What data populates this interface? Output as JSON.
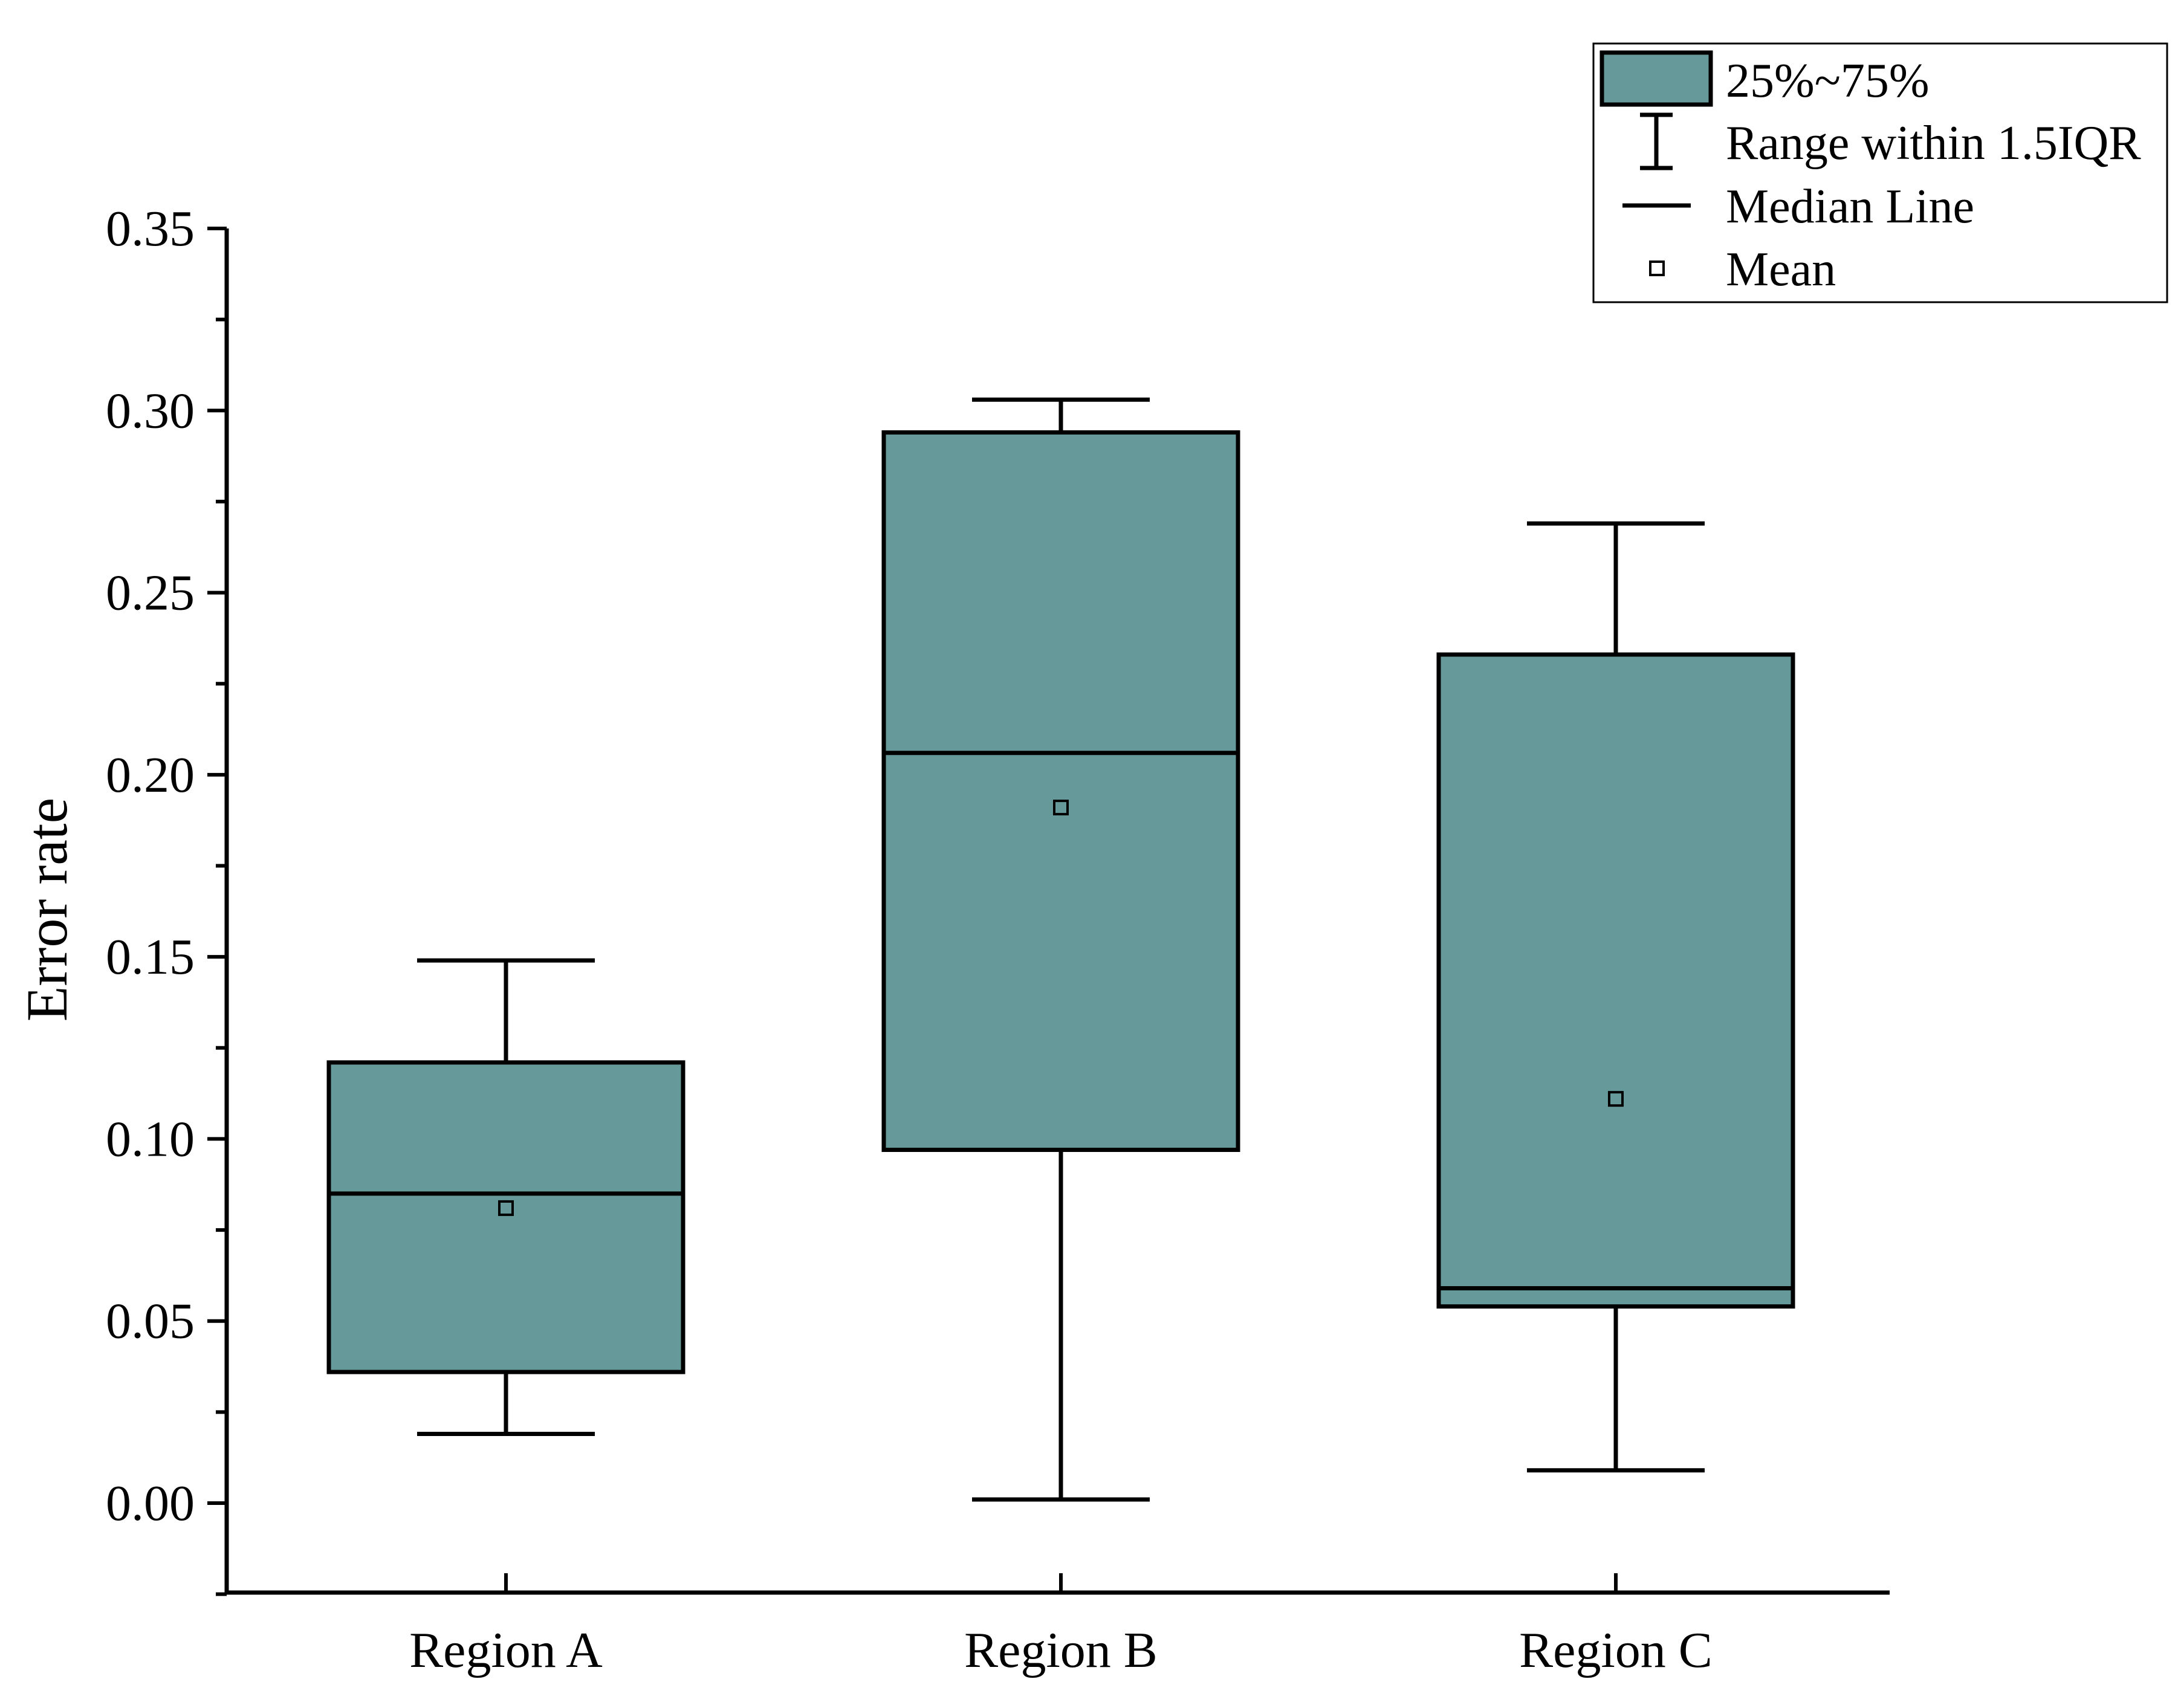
{
  "chart_data": {
    "type": "box",
    "title": "",
    "xlabel": "",
    "ylabel": "Error rate",
    "ylim": [
      -0.025,
      0.35
    ],
    "yticks": [
      "0.00",
      "0.05",
      "0.10",
      "0.15",
      "0.20",
      "0.25",
      "0.30",
      "0.35"
    ],
    "ytick_values": [
      0.0,
      0.05,
      0.1,
      0.15,
      0.2,
      0.25,
      0.3,
      0.35
    ],
    "categories": [
      "Region A",
      "Region B",
      "Region C"
    ],
    "boxes": [
      {
        "category": "Region A",
        "whisker_low": 0.019,
        "q1": 0.036,
        "median": 0.085,
        "q3": 0.121,
        "whisker_high": 0.149,
        "mean": 0.081
      },
      {
        "category": "Region B",
        "whisker_low": 0.001,
        "q1": 0.097,
        "median": 0.206,
        "q3": 0.294,
        "whisker_high": 0.303,
        "mean": 0.191
      },
      {
        "category": "Region C",
        "whisker_low": 0.009,
        "q1": 0.054,
        "median": 0.059,
        "q3": 0.233,
        "whisker_high": 0.269,
        "mean": 0.111
      }
    ],
    "colors": {
      "box_fill": "#669999",
      "stroke": "#000000"
    },
    "legend": {
      "placement": "top-right",
      "entries": [
        {
          "icon": "box-swatch-icon",
          "label": "25%~75%"
        },
        {
          "icon": "whisker-range-icon",
          "label": "Range within 1.5IQR"
        },
        {
          "icon": "median-line-icon",
          "label": "Median Line"
        },
        {
          "icon": "mean-marker-icon",
          "label": "Mean"
        }
      ]
    }
  }
}
